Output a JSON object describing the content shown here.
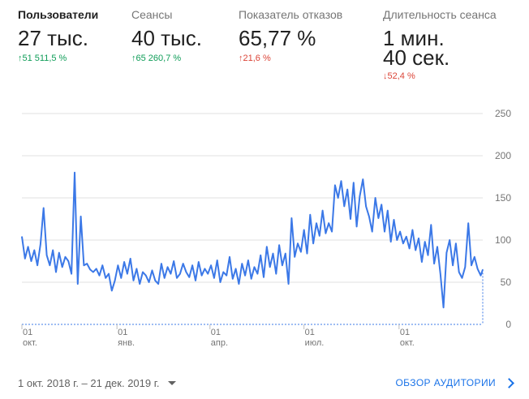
{
  "metrics": [
    {
      "label": "Пользователи",
      "value": "27 тыс.",
      "value2": "",
      "change_arrow": "↑",
      "change": "51 511,5 %",
      "trend": "up"
    },
    {
      "label": "Сеансы",
      "value": "40 тыс.",
      "value2": "",
      "change_arrow": "↑",
      "change": "65 260,7 %",
      "trend": "up"
    },
    {
      "label": "Показатель отказов",
      "value": "65,77 %",
      "value2": "",
      "change_arrow": "↑",
      "change": "21,6 %",
      "trend": "up-bad"
    },
    {
      "label": "Длительность сеанса",
      "value": "1 мин.",
      "value2": "40 сек.",
      "change_arrow": "↓",
      "change": "52,4 %",
      "trend": "down"
    }
  ],
  "footer": {
    "date_range": "1 окт. 2018 г. – 21 дек. 2019 г.",
    "audience_link": "ОБЗОР АУДИТОРИИ"
  },
  "colors": {
    "line": "#3b78e7",
    "grid": "#e0e0e0",
    "up": "#0f9d58",
    "down": "#db4437",
    "link": "#1a73e8"
  },
  "chart_data": {
    "type": "line",
    "title": "",
    "xlabel": "",
    "ylabel": "",
    "ylim": [
      0,
      250
    ],
    "yticks": [
      "250",
      "200",
      "150",
      "100",
      "50",
      "0"
    ],
    "ytick_values": [
      250,
      200,
      150,
      100,
      50,
      0
    ],
    "x_start": "2018-10-01",
    "x_end": "2019-12-21",
    "xticks": [
      {
        "date": "2018-10-01",
        "day": "01",
        "month": "окт."
      },
      {
        "date": "2019-01-01",
        "day": "01",
        "month": "янв."
      },
      {
        "date": "2019-04-01",
        "day": "01",
        "month": "апр."
      },
      {
        "date": "2019-07-01",
        "day": "01",
        "month": "июл."
      },
      {
        "date": "2019-10-01",
        "day": "01",
        "month": "окт."
      }
    ],
    "grid": true,
    "series": [
      {
        "name": "Пользователи",
        "points": [
          [
            "2018-10-01",
            104
          ],
          [
            "2018-10-04",
            78
          ],
          [
            "2018-10-07",
            92
          ],
          [
            "2018-10-10",
            75
          ],
          [
            "2018-10-13",
            88
          ],
          [
            "2018-10-16",
            70
          ],
          [
            "2018-10-19",
            95
          ],
          [
            "2018-10-22",
            138
          ],
          [
            "2018-10-25",
            82
          ],
          [
            "2018-10-28",
            70
          ],
          [
            "2018-10-31",
            88
          ],
          [
            "2018-11-03",
            62
          ],
          [
            "2018-11-06",
            85
          ],
          [
            "2018-11-09",
            68
          ],
          [
            "2018-11-12",
            80
          ],
          [
            "2018-11-15",
            75
          ],
          [
            "2018-11-18",
            60
          ],
          [
            "2018-11-21",
            180
          ],
          [
            "2018-11-24",
            48
          ],
          [
            "2018-11-27",
            128
          ],
          [
            "2018-11-30",
            70
          ],
          [
            "2018-12-03",
            72
          ],
          [
            "2018-12-06",
            65
          ],
          [
            "2018-12-09",
            62
          ],
          [
            "2018-12-12",
            66
          ],
          [
            "2018-12-15",
            58
          ],
          [
            "2018-12-18",
            70
          ],
          [
            "2018-12-21",
            55
          ],
          [
            "2018-12-24",
            60
          ],
          [
            "2018-12-27",
            40
          ],
          [
            "2018-12-30",
            52
          ],
          [
            "2019-01-02",
            70
          ],
          [
            "2019-01-05",
            55
          ],
          [
            "2019-01-08",
            74
          ],
          [
            "2019-01-11",
            60
          ],
          [
            "2019-01-14",
            78
          ],
          [
            "2019-01-17",
            52
          ],
          [
            "2019-01-20",
            66
          ],
          [
            "2019-01-23",
            48
          ],
          [
            "2019-01-26",
            62
          ],
          [
            "2019-01-29",
            58
          ],
          [
            "2019-02-01",
            50
          ],
          [
            "2019-02-04",
            64
          ],
          [
            "2019-02-07",
            52
          ],
          [
            "2019-02-10",
            48
          ],
          [
            "2019-02-13",
            72
          ],
          [
            "2019-02-16",
            55
          ],
          [
            "2019-02-19",
            68
          ],
          [
            "2019-02-22",
            60
          ],
          [
            "2019-02-25",
            75
          ],
          [
            "2019-02-28",
            55
          ],
          [
            "2019-03-03",
            60
          ],
          [
            "2019-03-06",
            72
          ],
          [
            "2019-03-09",
            62
          ],
          [
            "2019-03-12",
            56
          ],
          [
            "2019-03-15",
            70
          ],
          [
            "2019-03-18",
            52
          ],
          [
            "2019-03-21",
            74
          ],
          [
            "2019-03-24",
            58
          ],
          [
            "2019-03-27",
            66
          ],
          [
            "2019-03-30",
            60
          ],
          [
            "2019-04-02",
            70
          ],
          [
            "2019-04-05",
            55
          ],
          [
            "2019-04-08",
            76
          ],
          [
            "2019-04-11",
            50
          ],
          [
            "2019-04-14",
            62
          ],
          [
            "2019-04-17",
            58
          ],
          [
            "2019-04-20",
            80
          ],
          [
            "2019-04-23",
            54
          ],
          [
            "2019-04-26",
            66
          ],
          [
            "2019-04-29",
            48
          ],
          [
            "2019-05-02",
            72
          ],
          [
            "2019-05-05",
            58
          ],
          [
            "2019-05-08",
            76
          ],
          [
            "2019-05-11",
            54
          ],
          [
            "2019-05-14",
            68
          ],
          [
            "2019-05-17",
            60
          ],
          [
            "2019-05-20",
            82
          ],
          [
            "2019-05-23",
            56
          ],
          [
            "2019-05-26",
            92
          ],
          [
            "2019-05-29",
            68
          ],
          [
            "2019-06-01",
            84
          ],
          [
            "2019-06-04",
            60
          ],
          [
            "2019-06-07",
            94
          ],
          [
            "2019-06-10",
            70
          ],
          [
            "2019-06-13",
            84
          ],
          [
            "2019-06-16",
            48
          ],
          [
            "2019-06-19",
            126
          ],
          [
            "2019-06-22",
            80
          ],
          [
            "2019-06-25",
            96
          ],
          [
            "2019-06-28",
            86
          ],
          [
            "2019-07-01",
            112
          ],
          [
            "2019-07-04",
            84
          ],
          [
            "2019-07-07",
            130
          ],
          [
            "2019-07-10",
            96
          ],
          [
            "2019-07-13",
            120
          ],
          [
            "2019-07-16",
            105
          ],
          [
            "2019-07-19",
            135
          ],
          [
            "2019-07-22",
            108
          ],
          [
            "2019-07-25",
            120
          ],
          [
            "2019-07-28",
            110
          ],
          [
            "2019-07-31",
            165
          ],
          [
            "2019-08-03",
            150
          ],
          [
            "2019-08-06",
            170
          ],
          [
            "2019-08-09",
            140
          ],
          [
            "2019-08-12",
            160
          ],
          [
            "2019-08-15",
            125
          ],
          [
            "2019-08-18",
            168
          ],
          [
            "2019-08-21",
            116
          ],
          [
            "2019-08-24",
            152
          ],
          [
            "2019-08-27",
            172
          ],
          [
            "2019-08-30",
            140
          ],
          [
            "2019-09-02",
            128
          ],
          [
            "2019-09-05",
            110
          ],
          [
            "2019-09-08",
            150
          ],
          [
            "2019-09-11",
            126
          ],
          [
            "2019-09-14",
            142
          ],
          [
            "2019-09-17",
            110
          ],
          [
            "2019-09-20",
            135
          ],
          [
            "2019-09-23",
            98
          ],
          [
            "2019-09-26",
            124
          ],
          [
            "2019-09-29",
            100
          ],
          [
            "2019-10-02",
            110
          ],
          [
            "2019-10-05",
            96
          ],
          [
            "2019-10-08",
            104
          ],
          [
            "2019-10-11",
            90
          ],
          [
            "2019-10-14",
            112
          ],
          [
            "2019-10-17",
            88
          ],
          [
            "2019-10-20",
            102
          ],
          [
            "2019-10-23",
            74
          ],
          [
            "2019-10-26",
            98
          ],
          [
            "2019-10-29",
            82
          ],
          [
            "2019-11-01",
            118
          ],
          [
            "2019-11-04",
            72
          ],
          [
            "2019-11-07",
            92
          ],
          [
            "2019-11-10",
            60
          ],
          [
            "2019-11-13",
            20
          ],
          [
            "2019-11-16",
            85
          ],
          [
            "2019-11-19",
            100
          ],
          [
            "2019-11-22",
            70
          ],
          [
            "2019-11-25",
            96
          ],
          [
            "2019-11-28",
            62
          ],
          [
            "2019-12-01",
            55
          ],
          [
            "2019-12-04",
            68
          ],
          [
            "2019-12-07",
            120
          ],
          [
            "2019-12-10",
            70
          ],
          [
            "2019-12-13",
            80
          ],
          [
            "2019-12-16",
            66
          ],
          [
            "2019-12-19",
            58
          ],
          [
            "2019-12-21",
            65
          ]
        ]
      }
    ]
  }
}
